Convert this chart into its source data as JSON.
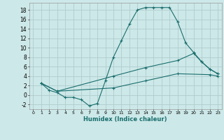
{
  "title": "",
  "xlabel": "Humidex (Indice chaleur)",
  "background_color": "#cde8e8",
  "grid_color": "#b0cccc",
  "line_color": "#1a6e6e",
  "x_min": -0.5,
  "x_max": 23.5,
  "y_min": -3,
  "y_max": 19.5,
  "x_ticks": [
    0,
    1,
    2,
    3,
    4,
    5,
    6,
    7,
    8,
    9,
    10,
    11,
    12,
    13,
    14,
    15,
    16,
    17,
    18,
    19,
    20,
    21,
    22,
    23
  ],
  "y_ticks": [
    -2,
    0,
    2,
    4,
    6,
    8,
    10,
    12,
    14,
    16,
    18
  ],
  "series": [
    {
      "x": [
        1,
        2,
        3,
        4,
        5,
        6,
        7,
        8,
        9,
        10,
        11,
        12,
        13,
        14,
        15,
        16,
        17,
        18,
        19,
        20,
        21,
        22,
        23
      ],
      "y": [
        2.5,
        1.0,
        0.5,
        -0.5,
        -0.5,
        -1.0,
        -2.3,
        -1.8,
        3.0,
        8.0,
        11.5,
        15.0,
        18.0,
        18.5,
        18.5,
        18.5,
        18.5,
        15.5,
        11.0,
        9.0,
        7.0,
        5.5,
        4.5
      ]
    },
    {
      "x": [
        1,
        3,
        10,
        14,
        18,
        20,
        21,
        22,
        23
      ],
      "y": [
        2.5,
        0.8,
        4.0,
        5.8,
        7.3,
        8.8,
        7.0,
        5.5,
        4.5
      ]
    },
    {
      "x": [
        1,
        3,
        10,
        14,
        18,
        22,
        23
      ],
      "y": [
        2.5,
        0.8,
        1.5,
        3.0,
        4.5,
        4.3,
        4.0
      ]
    }
  ]
}
